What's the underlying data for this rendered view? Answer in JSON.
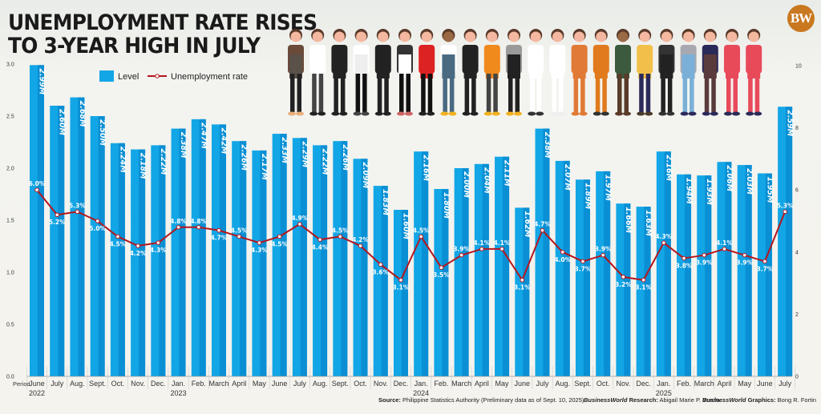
{
  "header": {
    "title_line1": "UNEMPLOYMENT RATE RISES",
    "title_line2": "TO 3-YEAR HIGH IN JULY",
    "logo": "BW"
  },
  "footer": {
    "source_label": "Source:",
    "source_text": "Philippine Statistics Authority (Preliminary data as of Sept. 10, 2025)",
    "research_brand": "BusinessWorld",
    "research_label": "Research:",
    "research_name": "Abigail Marie P. Yraola",
    "graphics_brand": "BusinessWorld",
    "graphics_label": "Graphics:",
    "graphics_name": "Bong R. Fortin"
  },
  "illustration": {
    "icon": "workers-group-illustration",
    "count": 22
  },
  "colors": {
    "bar_light": "#12a6e6",
    "bar_dark": "#0a8fd4",
    "line": "#b5161d",
    "logo": "#c9781f"
  },
  "chart_data": {
    "type": "bar+line",
    "title": "UNEMPLOYMENT RATE RISES TO 3-YEAR HIGH IN JULY",
    "xlabel": "Period",
    "categories": [
      "June",
      "July",
      "Aug.",
      "Sept.",
      "Oct.",
      "Nov.",
      "Dec.",
      "Jan.",
      "Feb.",
      "March",
      "April",
      "May",
      "June",
      "July",
      "Aug.",
      "Sept.",
      "Oct.",
      "Nov.",
      "Dec.",
      "Jan.",
      "Feb.",
      "March",
      "April",
      "May",
      "June",
      "July",
      "Aug.",
      "Sept.",
      "Oct.",
      "Nov.",
      "Dec.",
      "Jan.",
      "Feb.",
      "March",
      "April",
      "May",
      "June",
      "July"
    ],
    "year_labels": [
      {
        "index": 0,
        "year": "2022"
      },
      {
        "index": 7,
        "year": "2023"
      },
      {
        "index": 19,
        "year": "2024"
      },
      {
        "index": 31,
        "year": "2025"
      }
    ],
    "legend": {
      "placement": "top-left",
      "entries": [
        "Level",
        "Unemployment rate"
      ]
    },
    "series": [
      {
        "name": "Level",
        "type": "bar",
        "axis": "left",
        "unit": "M",
        "values": [
          2.99,
          2.6,
          2.68,
          2.5,
          2.24,
          2.18,
          2.22,
          2.38,
          2.47,
          2.42,
          2.26,
          2.17,
          2.33,
          2.29,
          2.22,
          2.26,
          2.09,
          1.83,
          1.6,
          2.16,
          1.8,
          2.0,
          2.04,
          2.11,
          1.62,
          2.38,
          2.07,
          1.89,
          1.97,
          1.66,
          1.63,
          2.16,
          1.94,
          1.93,
          2.06,
          2.03,
          1.95,
          2.59
        ],
        "labels": [
          "2.99M",
          "2.60M",
          "2.68M",
          "2.50M",
          "2.24M",
          "2.18M",
          "2.22M",
          "2.38M",
          "2.47M",
          "2.42M",
          "2.26M",
          "2.17M",
          "2.33M",
          "2.29M",
          "2.22M",
          "2.26M",
          "2.09M",
          "1.83M",
          "1.60M",
          "2.16M",
          "1.80M",
          "2.00M",
          "2.04M",
          "2.11M",
          "1.62M",
          "2.38M",
          "2.07M",
          "1.89M",
          "1.97M",
          "1.66M",
          "1.63M",
          "2.16M",
          "1.94M",
          "1.93M",
          "2.06M",
          "2.03M",
          "1.95M",
          "2.59M"
        ]
      },
      {
        "name": "Unemployment rate",
        "type": "line",
        "axis": "right",
        "unit": "%",
        "values": [
          6.0,
          5.2,
          5.3,
          5.0,
          4.5,
          4.2,
          4.3,
          4.8,
          4.8,
          4.7,
          4.5,
          4.3,
          4.5,
          4.9,
          4.4,
          4.5,
          4.2,
          3.6,
          3.1,
          4.5,
          3.5,
          3.9,
          4.1,
          4.1,
          3.1,
          4.7,
          4.0,
          3.7,
          3.9,
          3.2,
          3.1,
          4.3,
          3.8,
          3.9,
          4.1,
          3.9,
          3.7,
          5.3
        ],
        "labels": [
          "6.0%",
          "5.2%",
          "5.3%",
          "5.0%",
          "4.5%",
          "4.2%",
          "4.3%",
          "4.8%",
          "4.8%",
          "4.7%",
          "4.5%",
          "4.3%",
          "4.5%",
          "4.9%",
          "4.4%",
          "4.5%",
          "4.2%",
          "3.6%",
          "3.1%",
          "4.5%",
          "3.5%",
          "3.9%",
          "4.1%",
          "4.1%",
          "3.1%",
          "4.7%",
          "4.0%",
          "3.7%",
          "3.9%",
          "3.2%",
          "3.1%",
          "4.3%",
          "3.8%",
          "3.9%",
          "4.1%",
          "3.9%",
          "3.7%",
          "5.3%"
        ],
        "label_position": [
          "above",
          "below",
          "above",
          "below",
          "below",
          "below",
          "below",
          "above",
          "above",
          "below",
          "above",
          "below",
          "below",
          "above",
          "below",
          "above",
          "above",
          "below",
          "below",
          "above",
          "below",
          "above",
          "above",
          "above",
          "below",
          "above",
          "below",
          "below",
          "above",
          "below",
          "below",
          "above",
          "below",
          "below",
          "above",
          "below",
          "below",
          "above"
        ]
      }
    ],
    "left_axis": {
      "ylim": [
        0,
        3.0
      ],
      "ticks": [
        "0.0",
        "0.5",
        "1.0",
        "1.5",
        "2.0",
        "2.5",
        "3.0"
      ]
    },
    "right_axis": {
      "ylim": [
        0,
        10
      ],
      "ticks": [
        "0",
        "2",
        "4",
        "6",
        "8",
        "10"
      ]
    },
    "grid": false
  }
}
